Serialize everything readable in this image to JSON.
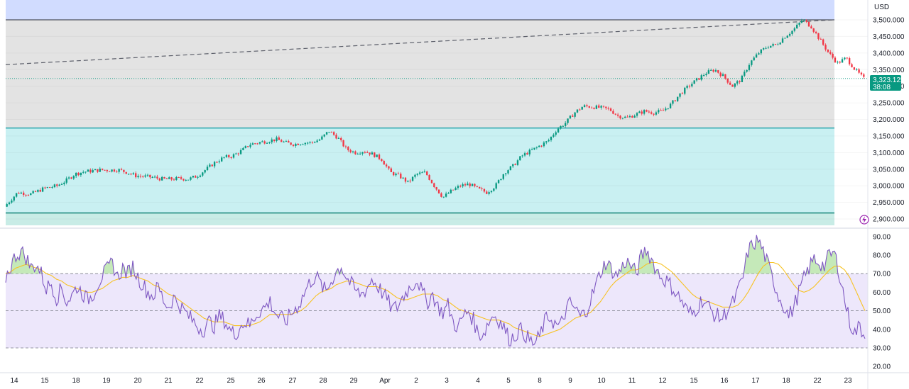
{
  "currency": "USD",
  "price_tag": {
    "price": "3,323.125",
    "countdown": "38:08",
    "color": "#089981"
  },
  "colors": {
    "up": "#089981",
    "down": "#f23645",
    "rsi": "#7e57c2",
    "rsi_ma": "#f7c325",
    "zone_resistance": "#e3e3e3",
    "zone_top": "#d1dcff",
    "zone_support": "#c9f0f2",
    "zone_bottom": "#c8ece6",
    "rsi_band": "#ede7fb",
    "line_support": "#1aa0a8",
    "line_bottom": "#00796b",
    "line_top": "#787b86"
  },
  "chart_data": [
    {
      "type": "candlestick",
      "title": "",
      "currency": "USD",
      "ylim": [
        2900,
        3510
      ],
      "y_ticks": [
        "2,900.000",
        "2,950.000",
        "3,000.000",
        "3,050.000",
        "3,100.000",
        "3,150.000",
        "3,200.000",
        "3,250.000",
        "3,300.000",
        "3,350.000",
        "3,400.000",
        "3,450.000",
        "3,500.000"
      ],
      "x_labels": [
        "14",
        "15",
        "18",
        "19",
        "20",
        "21",
        "22",
        "25",
        "26",
        "27",
        "28",
        "29",
        "Apr",
        "2",
        "3",
        "4",
        "5",
        "8",
        "9",
        "10",
        "11",
        "12",
        "15",
        "16",
        "17",
        "18",
        "22",
        "23"
      ],
      "last_price": 3323.125,
      "price_path": [
        [
          0,
          2937
        ],
        [
          1.5,
          2980
        ],
        [
          3,
          2975
        ],
        [
          4.5,
          2992
        ],
        [
          6,
          3000
        ],
        [
          7,
          3015
        ],
        [
          8,
          3035
        ],
        [
          9,
          3042
        ],
        [
          10,
          3045
        ],
        [
          11,
          3048
        ],
        [
          12,
          3047
        ],
        [
          13,
          3048
        ],
        [
          14,
          3040
        ],
        [
          15,
          3030
        ],
        [
          16,
          3028
        ],
        [
          17,
          3025
        ],
        [
          18,
          3020
        ],
        [
          19,
          3020
        ],
        [
          20,
          3022
        ],
        [
          21,
          3020
        ],
        [
          22,
          3030
        ],
        [
          23,
          3050
        ],
        [
          24,
          3070
        ],
        [
          25,
          3085
        ],
        [
          26,
          3090
        ],
        [
          27,
          3105
        ],
        [
          28,
          3125
        ],
        [
          29,
          3130
        ],
        [
          30,
          3135
        ],
        [
          31,
          3140
        ],
        [
          32,
          3130
        ],
        [
          33,
          3125
        ],
        [
          34,
          3130
        ],
        [
          35,
          3130
        ],
        [
          36,
          3140
        ],
        [
          37,
          3165
        ],
        [
          38,
          3145
        ],
        [
          39,
          3110
        ],
        [
          40,
          3100
        ],
        [
          41,
          3105
        ],
        [
          42,
          3095
        ],
        [
          43,
          3080
        ],
        [
          44,
          3040
        ],
        [
          45,
          3030
        ],
        [
          46,
          3010
        ],
        [
          47,
          3035
        ],
        [
          48,
          3040
        ],
        [
          49,
          3000
        ],
        [
          50,
          2965
        ],
        [
          51,
          2985
        ],
        [
          52,
          3000
        ],
        [
          53,
          3005
        ],
        [
          54,
          2990
        ],
        [
          55,
          2980
        ],
        [
          56,
          3000
        ],
        [
          57,
          3040
        ],
        [
          58,
          3060
        ],
        [
          59,
          3090
        ],
        [
          60,
          3105
        ],
        [
          61,
          3120
        ],
        [
          62,
          3135
        ],
        [
          63,
          3170
        ],
        [
          64,
          3190
        ],
        [
          65,
          3220
        ],
        [
          66,
          3240
        ],
        [
          67,
          3238
        ],
        [
          68,
          3235
        ],
        [
          69,
          3230
        ],
        [
          70,
          3210
        ],
        [
          71,
          3205
        ],
        [
          72,
          3215
        ],
        [
          73,
          3225
        ],
        [
          74,
          3220
        ],
        [
          75,
          3225
        ],
        [
          76,
          3245
        ],
        [
          77,
          3275
        ],
        [
          78,
          3300
        ],
        [
          79,
          3320
        ],
        [
          80,
          3340
        ],
        [
          81,
          3350
        ],
        [
          82,
          3330
        ],
        [
          83,
          3300
        ],
        [
          84,
          3320
        ],
        [
          85,
          3370
        ],
        [
          86,
          3400
        ],
        [
          87,
          3420
        ],
        [
          88,
          3425
        ],
        [
          89,
          3450
        ],
        [
          90,
          3470
        ],
        [
          91,
          3500
        ],
        [
          92,
          3480
        ],
        [
          93,
          3440
        ],
        [
          94,
          3400
        ],
        [
          95,
          3370
        ],
        [
          96,
          3385
        ],
        [
          97,
          3350
        ],
        [
          98,
          3323
        ]
      ],
      "levels": {
        "resistance": 3500,
        "support": 3174,
        "bottom": 2918,
        "trend_from": 3365,
        "trend_to": 3500
      }
    },
    {
      "type": "line",
      "title": "",
      "ylim": [
        18,
        95
      ],
      "y_ticks": [
        "20.00",
        "30.00",
        "40.00",
        "50.00",
        "60.00",
        "70.00",
        "80.00",
        "90.00"
      ],
      "bands": {
        "upper": 70,
        "middle": 50,
        "lower": 30
      },
      "series": [
        {
          "name": "",
          "values": [
            68,
            74,
            80,
            82,
            79,
            73,
            75,
            70,
            62,
            65,
            57,
            62,
            55,
            58,
            63,
            60,
            56,
            58,
            64,
            69,
            72,
            76,
            68,
            73,
            70,
            74,
            68,
            64,
            60,
            58,
            63,
            56,
            52,
            57,
            54,
            50,
            47,
            44,
            41,
            40,
            44,
            42,
            47,
            45,
            40,
            37,
            41,
            44,
            42,
            47,
            50,
            52,
            55,
            49,
            46,
            44,
            48,
            51,
            55,
            61,
            66,
            69,
            64,
            60,
            66,
            71,
            74,
            68,
            64,
            60,
            59,
            62,
            67,
            64,
            60,
            56,
            51,
            52,
            57,
            61,
            64,
            67,
            59,
            55,
            59,
            52,
            49,
            53,
            44,
            41,
            47,
            50,
            45,
            37,
            38,
            44,
            48,
            45,
            41,
            35,
            36,
            40,
            38,
            34,
            32,
            36,
            44,
            47,
            43,
            41,
            49,
            54,
            51,
            47,
            49,
            56,
            63,
            71,
            76,
            73,
            69,
            72,
            77,
            74,
            70,
            79,
            83,
            78,
            72,
            68,
            66,
            63,
            59,
            55,
            50,
            48,
            52,
            56,
            53,
            49,
            47,
            46,
            51,
            54,
            60,
            68,
            82,
            86,
            88,
            82,
            74,
            66,
            58,
            53,
            47,
            52,
            60,
            67,
            73,
            78,
            76,
            74,
            80,
            81,
            70,
            56,
            44,
            38,
            42,
            35
          ]
        },
        {
          "name": "",
          "values": [
            70,
            71,
            73,
            74,
            75,
            74,
            73,
            72,
            70,
            69,
            67,
            66,
            64,
            63,
            62,
            61,
            60,
            60,
            61,
            62,
            64,
            66,
            67,
            68,
            68,
            69,
            68,
            67,
            66,
            64,
            63,
            61,
            59,
            58,
            56,
            54,
            52,
            50,
            48,
            46,
            45,
            44,
            44,
            44,
            43,
            42,
            42,
            42,
            42,
            43,
            44,
            46,
            48,
            48,
            48,
            48,
            48,
            49,
            50,
            52,
            55,
            58,
            60,
            61,
            62,
            64,
            65,
            66,
            66,
            65,
            64,
            63,
            63,
            63,
            62,
            61,
            59,
            57,
            56,
            56,
            57,
            58,
            59,
            59,
            59,
            58,
            56,
            55,
            53,
            51,
            50,
            49,
            48,
            47,
            46,
            45,
            45,
            45,
            44,
            43,
            41,
            40,
            39,
            38,
            37,
            36,
            37,
            38,
            39,
            40,
            42,
            44,
            46,
            47,
            48,
            49,
            52,
            55,
            59,
            63,
            66,
            68,
            70,
            72,
            72,
            73,
            75,
            76,
            76,
            75,
            73,
            71,
            68,
            65,
            62,
            59,
            57,
            56,
            55,
            54,
            53,
            52,
            52,
            52,
            53,
            56,
            60,
            65,
            70,
            74,
            76,
            76,
            75,
            72,
            68,
            64,
            61,
            60,
            61,
            63,
            66,
            69,
            72,
            74,
            74,
            72,
            68,
            62,
            56,
            50
          ]
        }
      ]
    }
  ],
  "date_labels": [
    "14",
    "15",
    "18",
    "19",
    "20",
    "21",
    "22",
    "25",
    "26",
    "27",
    "28",
    "29",
    "Apr",
    "2",
    "3",
    "4",
    "5",
    "8",
    "9",
    "10",
    "11",
    "12",
    "15",
    "16",
    "17",
    "18",
    "22",
    "23"
  ]
}
